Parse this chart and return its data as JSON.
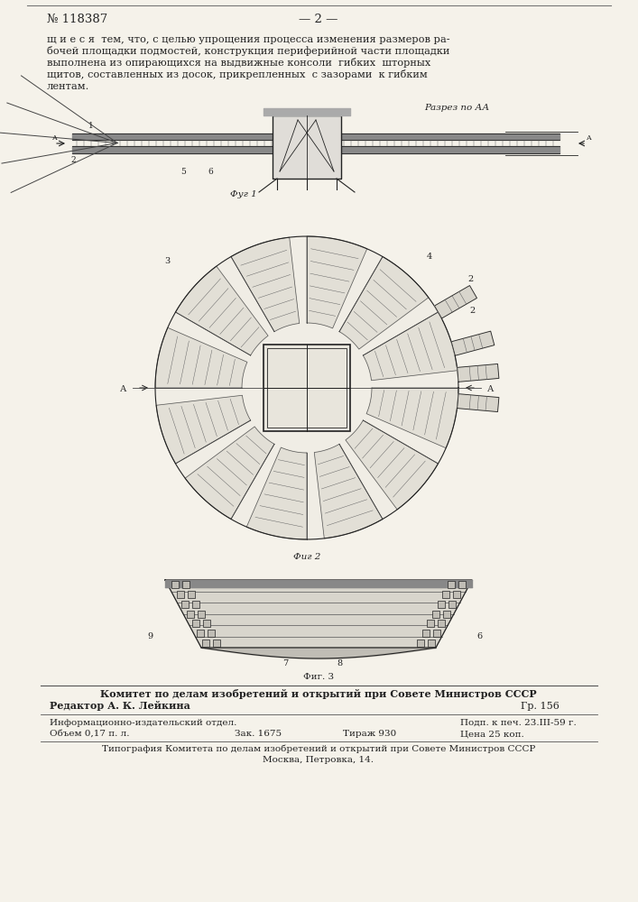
{
  "page_color": "#f5f2ea",
  "patent_number": "№ 118387",
  "page_number": "— 2 —",
  "razrez_label": "Разрез по АА",
  "fig1_label": "Фуг 1",
  "fig2_label": "Фиг 2",
  "fig3_label": "Фиг. 3",
  "footer_line1": "Комитет по делам изобретений и открытий при Совете Министров СССР",
  "footer_line2": "Редактор А. К. Лейкина",
  "footer_gr": "Гр. 156",
  "footer_info1": "Информационно-издательский отдел.",
  "footer_info2": "Объем 0,17 п. л.",
  "footer_zak": "Зак. 1675",
  "footer_tirazh": "Тираж 930",
  "footer_podp": "Подп. к печ. 23.III-59 г.",
  "footer_cena": "Цена 25 коп.",
  "footer_tipograf": "Типография Комитета по делам изобретений и открытий при Совете Министров СССР",
  "footer_moskva": "Москва, Петровка, 14."
}
